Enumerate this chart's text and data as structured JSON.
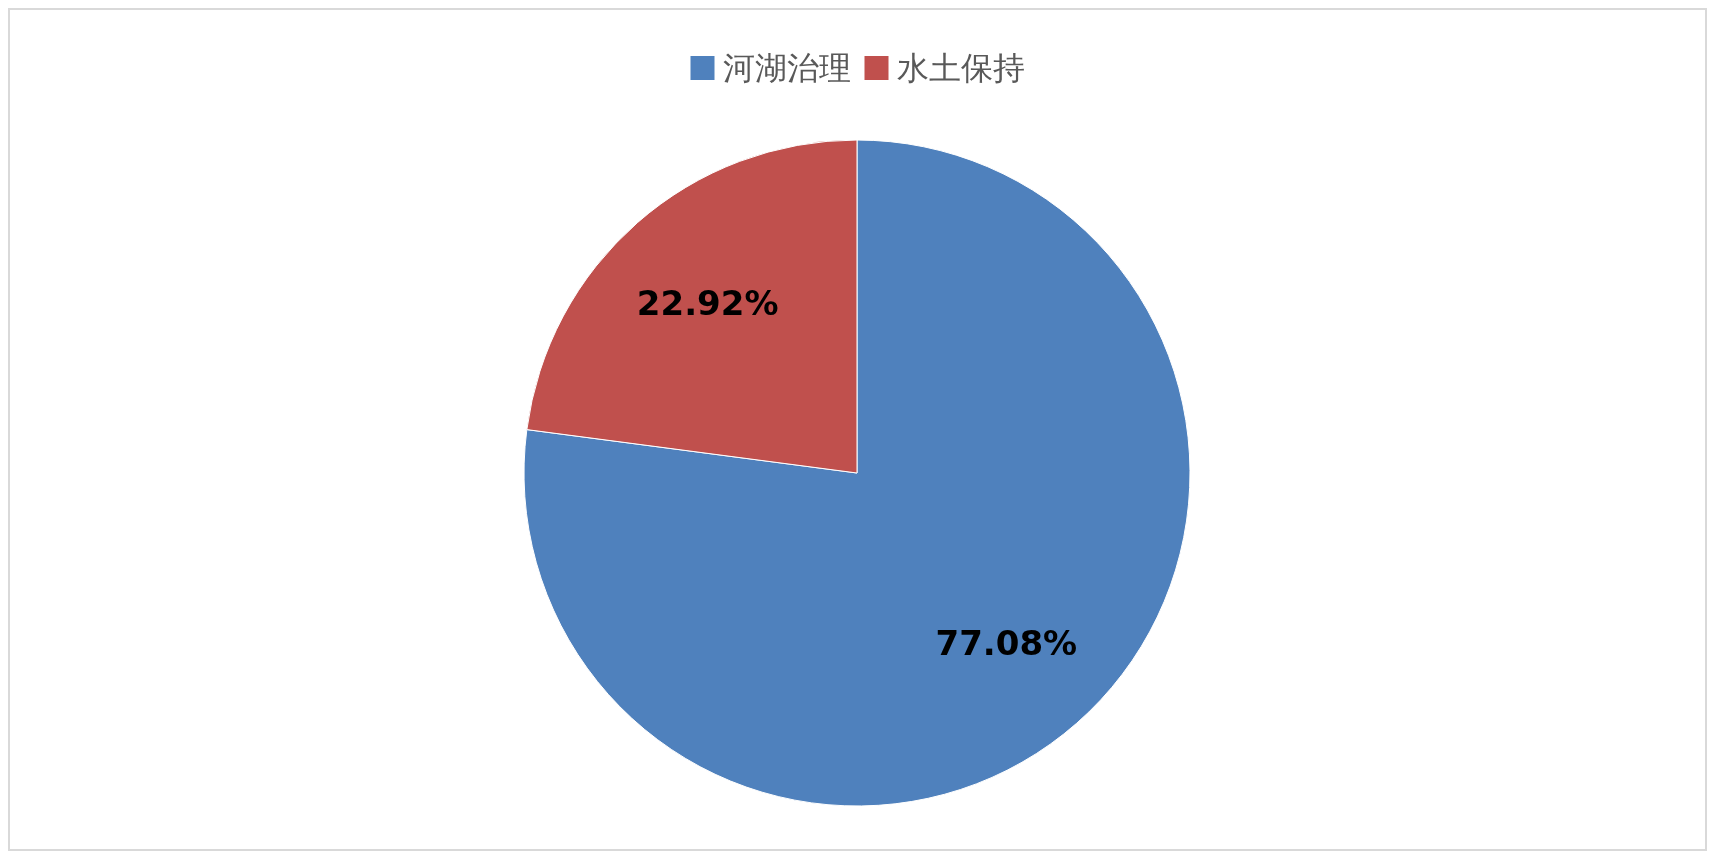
{
  "chart_data": {
    "type": "pie",
    "categories": [
      "河湖治理",
      "水土保持"
    ],
    "values": [
      77.08,
      22.92
    ],
    "colors": [
      "#4f81bd",
      "#c0504d"
    ],
    "value_labels": [
      "77.08%",
      "22.92%"
    ],
    "legend": "top"
  }
}
